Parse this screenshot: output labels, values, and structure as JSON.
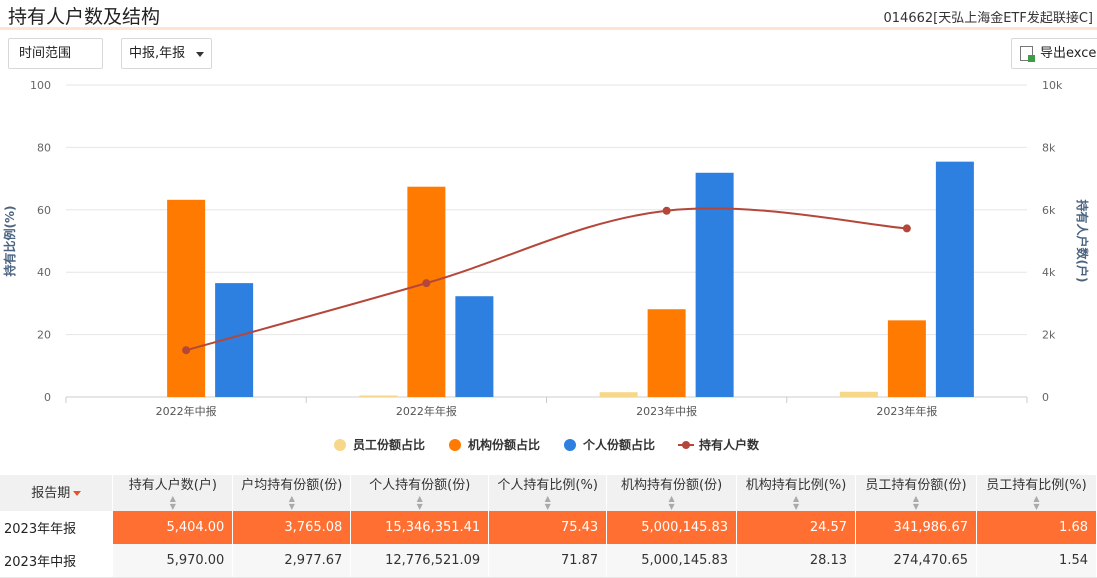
{
  "page": {
    "title": "持有人户数及结构",
    "fund": "014662[天弘上海金ETF发起联接C]"
  },
  "controls": {
    "range_label": "时间范围",
    "period_label": "中报,年报",
    "export_label": "导出excel"
  },
  "chart_data": {
    "type": "bar",
    "categories": [
      "2022年中报",
      "2022年年报",
      "2023年中报",
      "2023年年报"
    ],
    "series": [
      {
        "name": "员工份额占比",
        "type": "bar",
        "axis": "left",
        "color": "#f7d88a",
        "values": [
          0.0,
          0.5,
          1.54,
          1.68
        ]
      },
      {
        "name": "机构份额占比",
        "type": "bar",
        "axis": "left",
        "color": "#ff7a00",
        "values": [
          63.2,
          67.4,
          28.13,
          24.57
        ]
      },
      {
        "name": "个人份额占比",
        "type": "bar",
        "axis": "left",
        "color": "#2d7fe0",
        "values": [
          36.5,
          32.3,
          71.87,
          75.43
        ]
      },
      {
        "name": "持有人户数",
        "type": "line",
        "axis": "right",
        "color": "#b5473a",
        "values": [
          1500,
          3650,
          5970,
          5404
        ]
      }
    ],
    "ylabel": "持有比例(%)",
    "y2label": "持有人户数(户)",
    "ylim": [
      0,
      100
    ],
    "y2lim": [
      0,
      10000
    ],
    "yticks": [
      "0",
      "20",
      "40",
      "60",
      "80",
      "100"
    ],
    "y2ticks": [
      "0",
      "2k",
      "4k",
      "6k",
      "8k",
      "10k"
    ],
    "grid": true,
    "legend": "bottom"
  },
  "table": {
    "headers": [
      {
        "label": "报告期",
        "sorted": "desc"
      },
      {
        "label": "持有人户数(户)"
      },
      {
        "label": "户均持有份额(份)"
      },
      {
        "label": "个人持有份额(份)"
      },
      {
        "label": "个人持有比例(%)"
      },
      {
        "label": "机构持有份额(份)"
      },
      {
        "label": "机构持有比例(%)"
      },
      {
        "label": "员工持有份额(份)"
      },
      {
        "label": "员工持有比例(%)"
      }
    ],
    "rows": [
      {
        "highlight": true,
        "cells": [
          "2023年年报",
          "5,404.00",
          "3,765.08",
          "15,346,351.41",
          "75.43",
          "5,000,145.83",
          "24.57",
          "341,986.67",
          "1.68"
        ]
      },
      {
        "highlight": false,
        "cells": [
          "2023年中报",
          "5,970.00",
          "2,977.67",
          "12,776,521.09",
          "71.87",
          "5,000,145.83",
          "28.13",
          "274,470.65",
          "1.54"
        ]
      }
    ]
  }
}
